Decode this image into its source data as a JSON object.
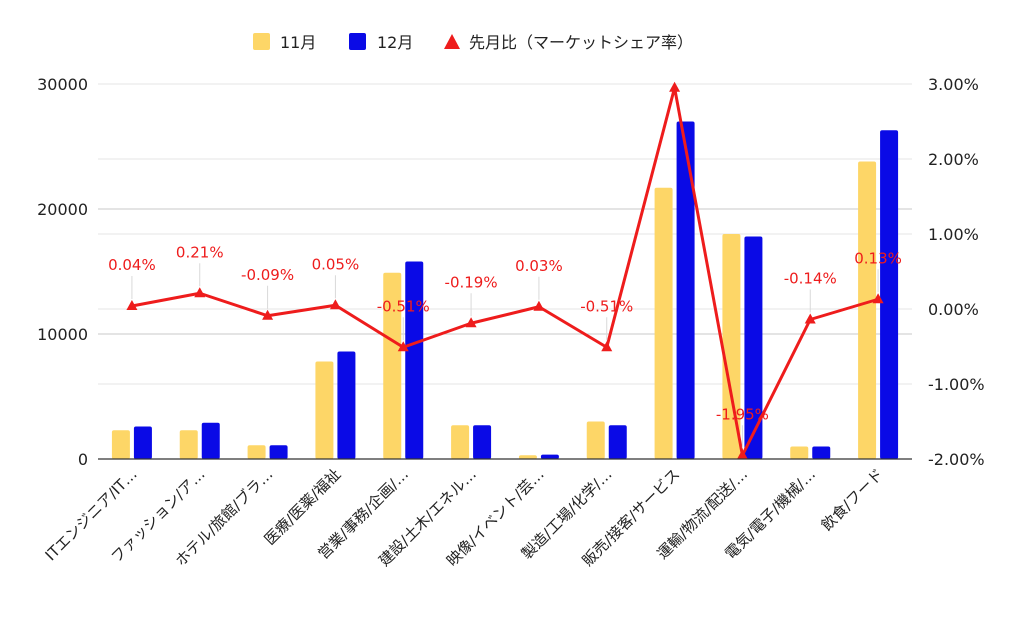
{
  "chart_data": {
    "type": "bar",
    "categories": [
      "ITエンジニア/IT…",
      "ファッション/ア…",
      "ホテル/旅館/ブラ…",
      "医療/医薬/福祉",
      "営業/事務/企画/…",
      "建設/土木/エネル…",
      "映像/イベント/芸…",
      "製造/工場/化学/…",
      "販売/接客/サービス",
      "運輸/物流/配送/…",
      "電気/電子/機械/…",
      "飲食/フード"
    ],
    "series": [
      {
        "name": "11月",
        "type": "bar",
        "axis": "left",
        "color": "#fdd667",
        "values": [
          2300,
          2300,
          1100,
          7800,
          14900,
          2700,
          300,
          3000,
          21700,
          18000,
          1000,
          23800
        ]
      },
      {
        "name": "12月",
        "type": "bar",
        "axis": "left",
        "color": "#0a0ae6",
        "values": [
          2600,
          2900,
          1100,
          8600,
          15800,
          2700,
          350,
          2700,
          27000,
          17800,
          1000,
          26300
        ]
      },
      {
        "name": "先月比（マーケットシェア率）",
        "type": "line",
        "axis": "right",
        "color": "#ee1c1c",
        "marker": "triangle",
        "values": [
          0.04,
          0.21,
          -0.09,
          0.05,
          -0.51,
          -0.19,
          0.03,
          -0.51,
          2.95,
          -1.95,
          -0.14,
          0.13
        ],
        "labels": [
          "0.04%",
          "0.21%",
          "-0.09%",
          "0.05%",
          "-0.51%",
          "-0.19%",
          "0.03%",
          "-0.51%",
          "",
          "-1.95%",
          "-0.14%",
          "0.13%"
        ]
      }
    ],
    "y_left": {
      "ticks": [
        "0",
        "10000",
        "20000",
        "30000"
      ],
      "ylim": [
        0,
        30000
      ]
    },
    "y_right": {
      "ticks": [
        "-2.00%",
        "-1.00%",
        "0.00%",
        "1.00%",
        "2.00%",
        "3.00%"
      ],
      "ylim": [
        -2,
        3
      ]
    },
    "legend": {
      "position": "top"
    },
    "grid": true
  }
}
